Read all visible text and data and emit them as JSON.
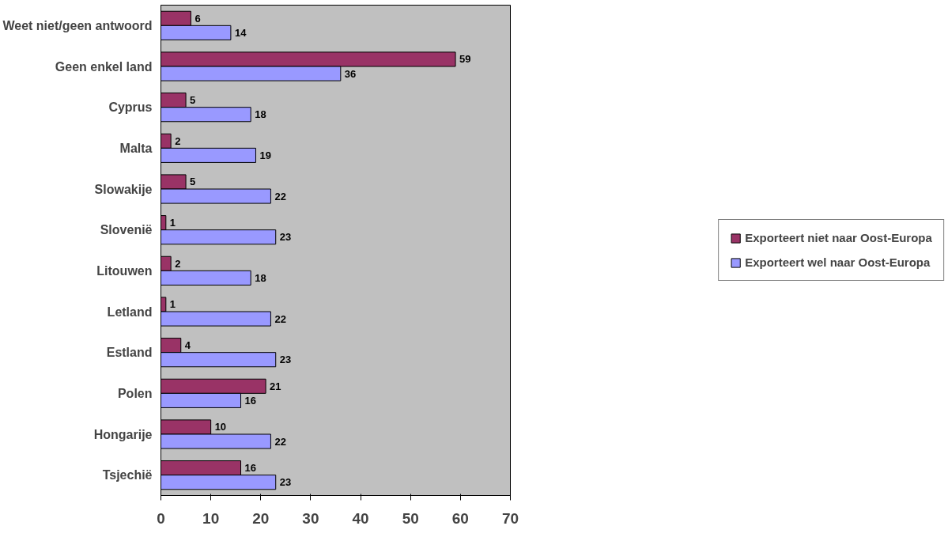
{
  "chart_data": {
    "type": "bar",
    "orientation": "horizontal",
    "categories": [
      "Weet niet/geen antwoord",
      "Geen enkel land",
      "Cyprus",
      "Malta",
      "Slowakije",
      "Slovenië",
      "Litouwen",
      "Letland",
      "Estland",
      "Polen",
      "Hongarije",
      "Tsjechië"
    ],
    "series": [
      {
        "name": "Exporteert niet naar Oost-Europa",
        "color": "#993366",
        "values": [
          6,
          59,
          5,
          2,
          5,
          1,
          2,
          1,
          4,
          21,
          10,
          16
        ]
      },
      {
        "name": "Exporteert wel naar Oost-Europa",
        "color": "#9999ff",
        "values": [
          14,
          36,
          18,
          19,
          22,
          23,
          18,
          22,
          23,
          16,
          22,
          23
        ]
      }
    ],
    "xlim": [
      0,
      70
    ],
    "xticks": [
      0,
      10,
      20,
      30,
      40,
      50,
      60,
      70
    ],
    "grid": false,
    "legend": "right",
    "data_labels": true
  }
}
